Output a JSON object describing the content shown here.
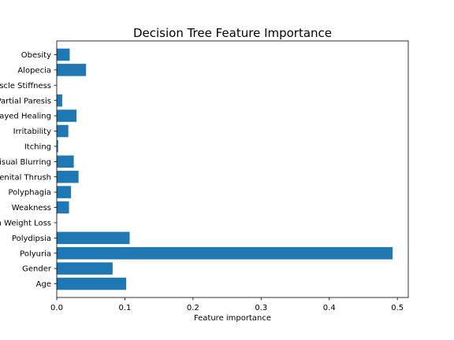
{
  "chart_data": {
    "type": "bar",
    "orientation": "horizontal",
    "title": "Decision Tree Feature Importance",
    "xlabel": "Feature importance",
    "ylabel": "",
    "xlim": [
      0,
      0.516
    ],
    "xticks": [
      0.0,
      0.1,
      0.2,
      0.3,
      0.4,
      0.5
    ],
    "xtick_labels": [
      "0.0",
      "0.1",
      "0.2",
      "0.3",
      "0.4",
      "0.5"
    ],
    "categories": [
      "Age",
      "Gender",
      "Polyuria",
      "Polydipsia",
      "Sudden Weight Loss",
      "Weakness",
      "Polyphagia",
      "Genital Thrush",
      "Visual Blurring",
      "Itching",
      "Irritability",
      "Delayed Healing",
      "Partial Paresis",
      "Muscle Stiffness",
      "Alopecia",
      "Obesity"
    ],
    "values": [
      0.102,
      0.082,
      0.493,
      0.107,
      0.0,
      0.018,
      0.021,
      0.032,
      0.025,
      0.002,
      0.017,
      0.029,
      0.008,
      0.0,
      0.043,
      0.019
    ],
    "color": "#1f77b4",
    "grid": false,
    "legend": "none"
  }
}
